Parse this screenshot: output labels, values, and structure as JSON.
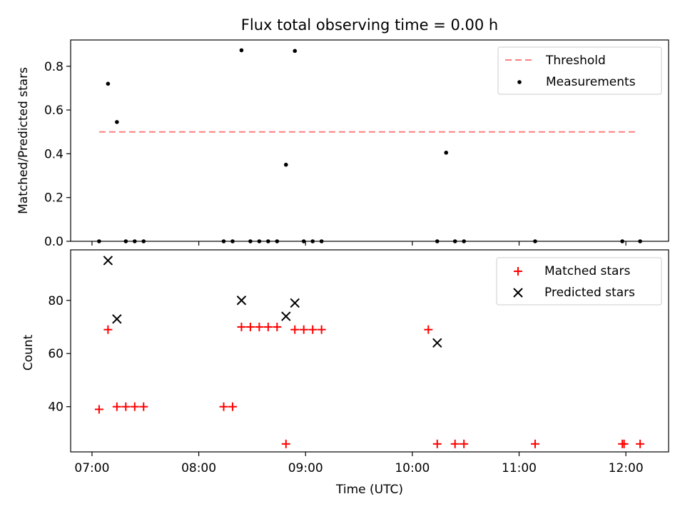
{
  "title": "Flux total observing time = 0.00 h",
  "colors": {
    "threshold": "#ff7f7f",
    "measurements": "#000000",
    "matched": "#ff0000",
    "predicted": "#000000"
  },
  "chart_data": [
    {
      "type": "scatter",
      "ylabel": "Matched/Predicted stars",
      "xlim": [
        "06:48",
        "12:24"
      ],
      "ylim": [
        0,
        0.92
      ],
      "yticks": [
        0.0,
        0.2,
        0.4,
        0.6,
        0.8
      ],
      "ytick_labels": [
        "0.0",
        "0.2",
        "0.4",
        "0.6",
        "0.8"
      ],
      "legend_position": "top-right",
      "legend": {
        "threshold": "Threshold",
        "measurements": "Measurements"
      },
      "threshold": {
        "value": 0.5,
        "x_start": "07:04",
        "x_end": "12:07"
      },
      "measurements": {
        "x": [
          "07:04",
          "07:09",
          "07:14",
          "07:19",
          "07:24",
          "07:29",
          "08:14",
          "08:19",
          "08:24",
          "08:29",
          "08:34",
          "08:39",
          "08:44",
          "08:49",
          "08:54",
          "08:59",
          "09:04",
          "09:09",
          "10:14",
          "10:19",
          "10:24",
          "10:29",
          "11:09",
          "11:58",
          "12:08"
        ],
        "y": [
          0.0,
          0.72,
          0.545,
          0.0,
          0.0,
          0.0,
          0.0,
          0.0,
          0.873,
          0.0,
          0.0,
          0.0,
          0.0,
          0.35,
          0.87,
          0.0,
          0.0,
          0.0,
          0.0,
          0.405,
          0.0,
          0.0,
          0.0,
          0.0,
          0.0
        ]
      }
    },
    {
      "type": "scatter",
      "xlabel": "Time (UTC)",
      "ylabel": "Count",
      "xlim": [
        "06:48",
        "12:24"
      ],
      "ylim": [
        23,
        99
      ],
      "yticks": [
        40,
        60,
        80
      ],
      "ytick_labels": [
        "40",
        "60",
        "80"
      ],
      "xticks": [
        "07:00",
        "08:00",
        "09:00",
        "10:00",
        "11:00",
        "12:00"
      ],
      "xtick_labels": [
        "07:00",
        "08:00",
        "09:00",
        "10:00",
        "11:00",
        "12:00"
      ],
      "legend_position": "top-right",
      "legend": {
        "matched": "Matched stars",
        "predicted": "Predicted stars"
      },
      "series": [
        {
          "name": "Matched stars",
          "x": [
            "07:04",
            "07:09",
            "07:14",
            "07:19",
            "07:24",
            "07:29",
            "08:14",
            "08:19",
            "08:24",
            "08:29",
            "08:34",
            "08:39",
            "08:44",
            "08:49",
            "08:54",
            "08:59",
            "09:04",
            "09:09",
            "10:09",
            "10:14",
            "10:24",
            "10:29",
            "11:09",
            "11:58",
            "11:59",
            "12:08"
          ],
          "y": [
            39,
            69,
            40,
            40,
            40,
            40,
            40,
            40,
            70,
            70,
            70,
            70,
            70,
            26,
            69,
            69,
            69,
            69,
            69,
            26,
            26,
            26,
            26,
            26,
            26,
            26
          ]
        },
        {
          "name": "Predicted stars",
          "x": [
            "07:09",
            "07:14",
            "08:24",
            "08:49",
            "08:54",
            "10:14"
          ],
          "y": [
            95,
            73,
            80,
            74,
            79,
            64
          ]
        }
      ]
    }
  ]
}
